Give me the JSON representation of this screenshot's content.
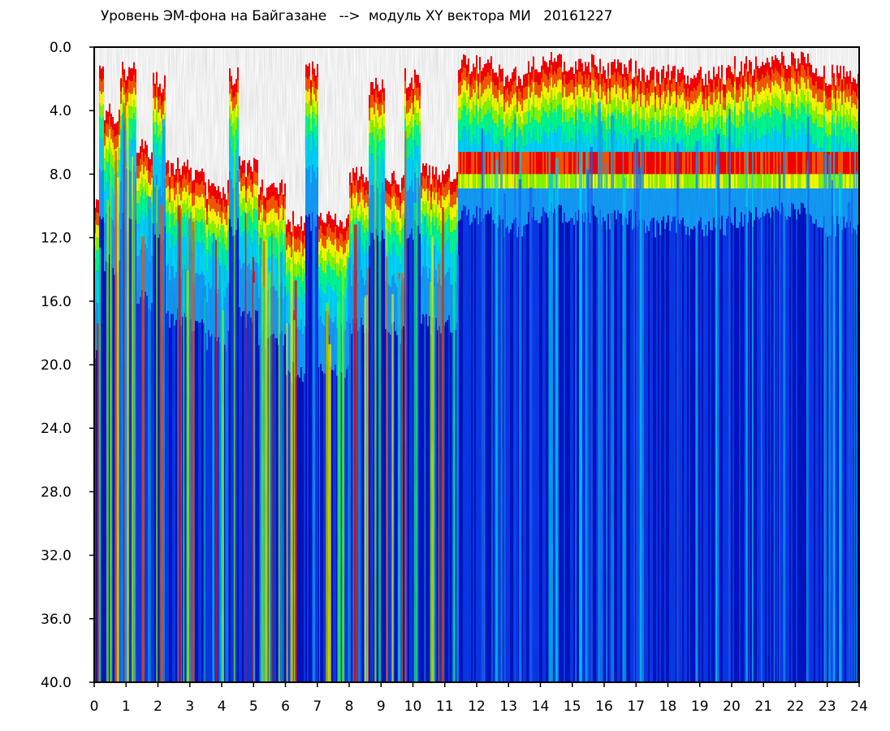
{
  "title": "Уровень ЭМ-фона на Байгазане   -->  модуль XY вектора МИ   20161227",
  "colors": {
    "background": "#ffffff",
    "scale": [
      "#0016c8",
      "#0a3af0",
      "#1e64ff",
      "#14a0ff",
      "#00d8ff",
      "#00ff96",
      "#8cff00",
      "#ffff00",
      "#ff5a00",
      "#ff0000"
    ]
  },
  "chart_data": {
    "type": "heatmap",
    "title": "Уровень ЭМ-фона на Байгазане   -->  модуль XY вектора МИ   20161227",
    "xlabel": "",
    "ylabel": "",
    "xlim": [
      0,
      24
    ],
    "ylim": [
      0,
      40
    ],
    "y_inverted": true,
    "x_ticks": [
      "0",
      "1",
      "2",
      "3",
      "4",
      "5",
      "6",
      "7",
      "8",
      "9",
      "10",
      "11",
      "12",
      "13",
      "14",
      "15",
      "16",
      "17",
      "18",
      "19",
      "20",
      "21",
      "22",
      "23",
      "24"
    ],
    "y_ticks": [
      "0.0",
      "4.0",
      "8.0",
      "12.0",
      "16.0",
      "20.0",
      "24.0",
      "28.0",
      "32.0",
      "36.0",
      "40.0"
    ],
    "regions": [
      {
        "x": [
          0.0,
          0.15
        ],
        "top": 9.5
      },
      {
        "x": [
          0.3,
          0.8
        ],
        "top": 4.2
      },
      {
        "x": [
          0.9,
          1.3
        ],
        "top": 1.5
      },
      {
        "x": [
          1.3,
          1.8
        ],
        "top": 6.5
      },
      {
        "x": [
          1.8,
          2.2
        ],
        "top": 2.2
      },
      {
        "x": [
          2.2,
          3.0
        ],
        "top": 7.5
      },
      {
        "x": [
          3.0,
          3.5
        ],
        "top": 8.0
      },
      {
        "x": [
          3.5,
          4.2
        ],
        "top": 9.0
      },
      {
        "x": [
          4.2,
          4.5
        ],
        "top": 1.8
      },
      {
        "x": [
          4.5,
          5.1
        ],
        "top": 7.5
      },
      {
        "x": [
          5.1,
          6.0
        ],
        "top": 9.0
      },
      {
        "x": [
          6.0,
          6.6
        ],
        "top": 11.0
      },
      {
        "x": [
          6.6,
          7.0
        ],
        "top": 1.5
      },
      {
        "x": [
          7.0,
          8.0
        ],
        "top": 11.0
      },
      {
        "x": [
          8.0,
          8.6
        ],
        "top": 8.0
      },
      {
        "x": [
          8.6,
          9.1
        ],
        "top": 2.5
      },
      {
        "x": [
          9.1,
          9.7
        ],
        "top": 8.5
      },
      {
        "x": [
          9.7,
          10.2
        ],
        "top": 2.0
      },
      {
        "x": [
          10.2,
          11.4
        ],
        "top": 8.0
      },
      {
        "x": [
          11.4,
          12.5
        ],
        "top": 1.0
      },
      {
        "x": [
          12.5,
          13.5
        ],
        "top": 1.8
      },
      {
        "x": [
          13.5,
          16.0
        ],
        "top": 1.0
      },
      {
        "x": [
          16.0,
          17.0
        ],
        "top": 1.3
      },
      {
        "x": [
          17.0,
          18.0
        ],
        "top": 1.8
      },
      {
        "x": [
          18.0,
          19.0
        ],
        "top": 1.7
      },
      {
        "x": [
          19.0,
          20.0
        ],
        "top": 1.8
      },
      {
        "x": [
          20.0,
          21.5
        ],
        "top": 1.2
      },
      {
        "x": [
          21.5,
          22.5
        ],
        "top": 0.7
      },
      {
        "x": [
          22.5,
          24.0
        ],
        "top": 1.8
      }
    ],
    "band_y": 8.0,
    "grid": false
  }
}
